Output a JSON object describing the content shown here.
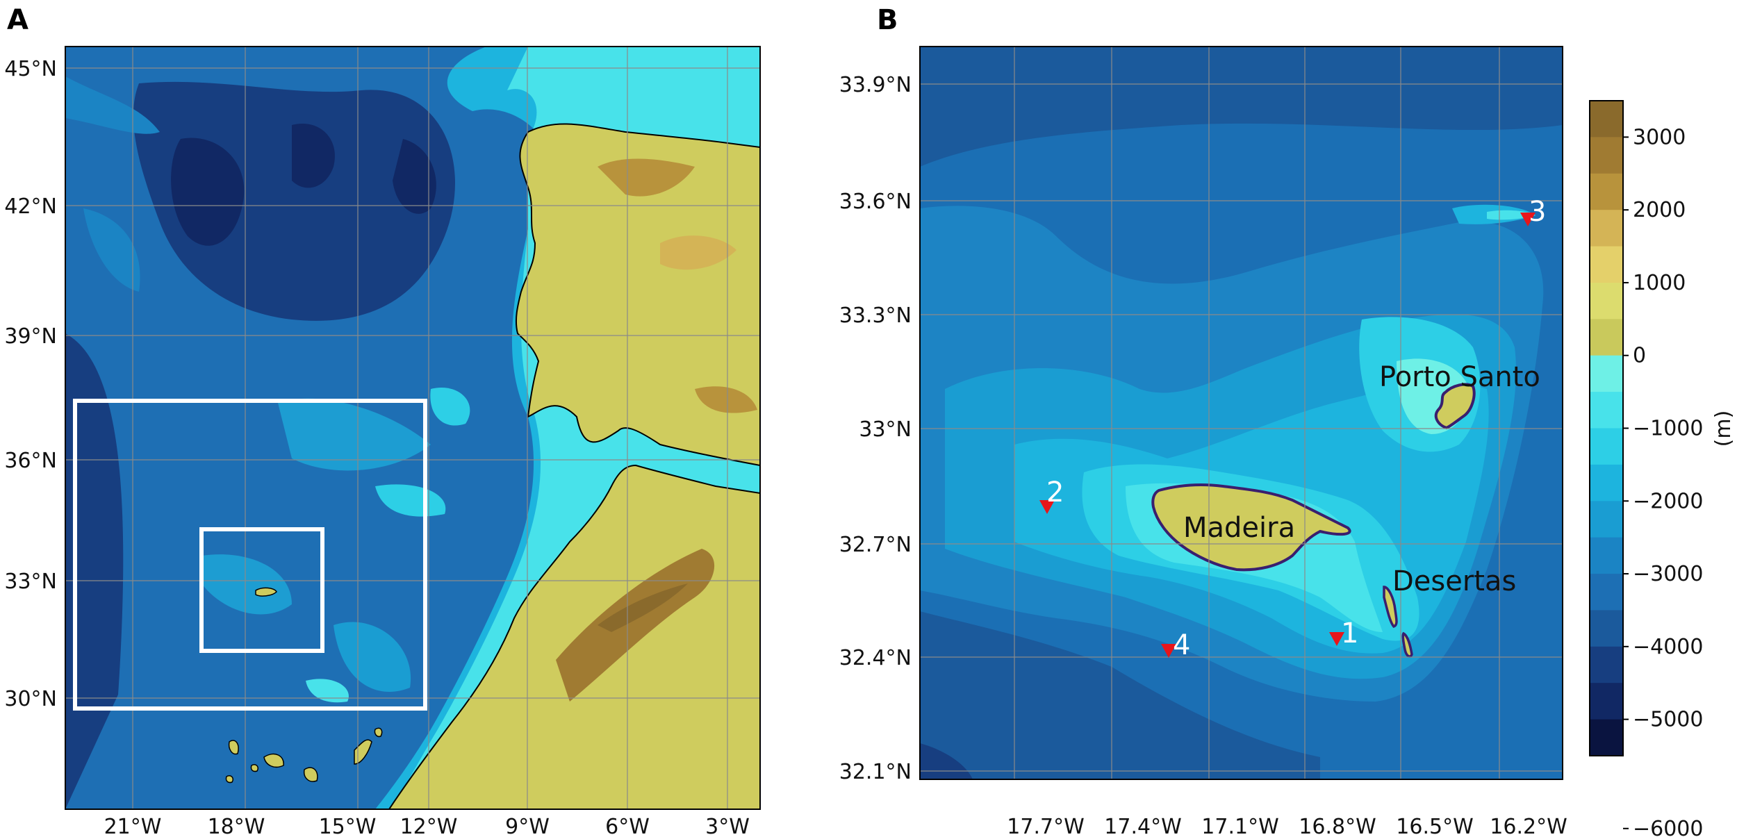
{
  "panels": [
    {
      "letter": "A",
      "lat_ticks": [
        "45°N",
        "42°N",
        "39°N",
        "36°N",
        "33°N",
        "30°N"
      ],
      "lon_ticks": [
        "21°W",
        "18°W",
        "15°W",
        "12°W",
        "9°W",
        "6°W",
        "3°W"
      ],
      "insets": [
        "outer-domain-box",
        "inner-domain-box"
      ]
    },
    {
      "letter": "B",
      "lat_ticks": [
        "33.9°N",
        "33.6°N",
        "33.3°N",
        "33°N",
        "32.7°N",
        "32.4°N",
        "32.1°N"
      ],
      "lon_ticks": [
        "17.7°W",
        "17.4°W",
        "17.1°W",
        "16.8°W",
        "16.5°W",
        "16.2°W"
      ],
      "place_labels": [
        "Porto Santo",
        "Madeira",
        "Desertas"
      ],
      "stations": [
        "1",
        "2",
        "3",
        "4"
      ]
    }
  ],
  "colorbar": {
    "unit": "(m)",
    "ticks": [
      "3000",
      "2000",
      "1000",
      "0",
      "−1000",
      "−2000",
      "−3000",
      "−4000",
      "−5000",
      "−6000"
    ],
    "colors": [
      "#8a6a2c",
      "#a07b32",
      "#b8933c",
      "#d4b456",
      "#e4d06a",
      "#dcdc6e",
      "#c9c95c",
      "#6ef0e6",
      "#48e2ea",
      "#2dcfe6",
      "#1db4de",
      "#1a9dd2",
      "#1b84c4",
      "#1d6fb4",
      "#1b5a9c",
      "#173e80",
      "#112864",
      "#0a1440"
    ]
  },
  "colors": {
    "land": "#cfcc5e",
    "land_high": "#b8933c",
    "shelf": "#4fe4e8",
    "slope": "#1db0de",
    "ocean": "#1e6fb4",
    "deep": "#173e80",
    "marker": "#e8151a"
  }
}
